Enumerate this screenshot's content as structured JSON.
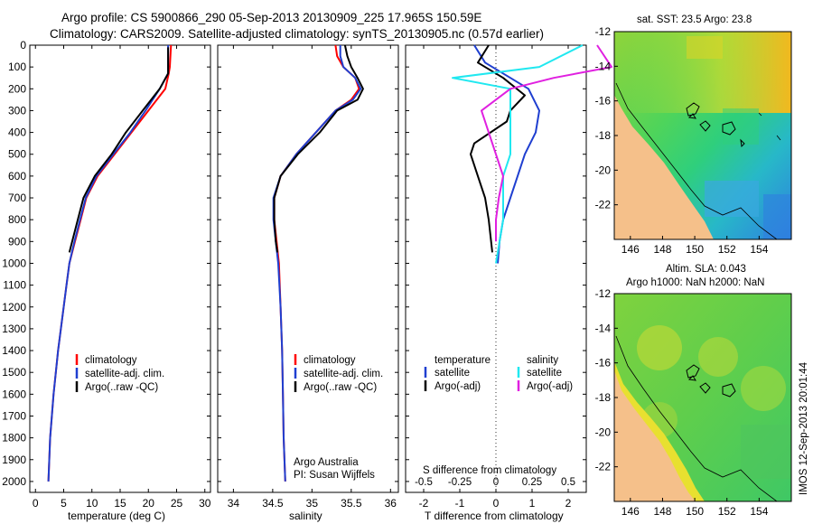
{
  "titles": {
    "line1": "Argo profile: CS 5900866_290 05-Sep-2013 20130909_225 17.965S 150.59E",
    "line2": "Climatology: CARS2009. Satellite-adjusted climatology: synTS_20130905.nc (0.57d earlier)"
  },
  "colors": {
    "climatology": "#ff0000",
    "satellite": "#1f3fd0",
    "argo": "#000000",
    "cyan": "#20e8f0",
    "magenta": "#e020e0",
    "land": "#f5c08a"
  },
  "chart_data": [
    {
      "id": "temperature",
      "type": "line",
      "xlabel": "temperature (deg C)",
      "ylabel": "",
      "xlim": [
        -1,
        31
      ],
      "ylim": [
        0,
        2050
      ],
      "xticks": [
        0,
        5,
        10,
        15,
        20,
        25,
        30
      ],
      "xtick_labels": [
        "0",
        "5",
        "10",
        "15",
        "20",
        "25",
        "30"
      ],
      "yticks": [
        0,
        100,
        200,
        300,
        400,
        500,
        600,
        700,
        800,
        900,
        1000,
        1100,
        1200,
        1300,
        1400,
        1500,
        1600,
        1700,
        1800,
        1900,
        2000
      ],
      "ytick_labels": [
        "0",
        "100",
        "200",
        "300",
        "400",
        "500",
        "600",
        "700",
        "800",
        "900",
        "1000",
        "1100",
        "1200",
        "1300",
        "1400",
        "1500",
        "1600",
        "1700",
        "1800",
        "1900",
        "2000"
      ],
      "legend": [
        "climatology",
        "satellite-adj. clim.",
        "Argo(..raw -QC)"
      ],
      "series": [
        {
          "name": "climatology",
          "color": "#ff0000",
          "x": [
            24.0,
            23.8,
            23.6,
            23.0,
            20.0,
            17.0,
            14.0,
            11.0,
            9.0,
            8.0,
            7.0,
            6.0,
            5.5,
            5.0,
            4.5,
            4.0,
            3.6,
            3.2,
            2.9,
            2.6,
            2.3
          ],
          "y": [
            0,
            100,
            130,
            200,
            300,
            400,
            500,
            600,
            700,
            800,
            900,
            1000,
            1100,
            1200,
            1300,
            1400,
            1500,
            1600,
            1700,
            1800,
            2000
          ]
        },
        {
          "name": "satellite-adj. clim.",
          "color": "#1f3fd0",
          "x": [
            23.5,
            23.5,
            23.5,
            22.0,
            19.5,
            16.8,
            13.8,
            10.8,
            8.9,
            7.9,
            6.9,
            6.0,
            5.5,
            5.0,
            4.5,
            4.0,
            3.6,
            3.2,
            2.9,
            2.6,
            2.3
          ],
          "y": [
            0,
            100,
            130,
            200,
            300,
            400,
            500,
            600,
            700,
            800,
            900,
            1000,
            1100,
            1200,
            1300,
            1400,
            1500,
            1600,
            1700,
            1800,
            2000
          ]
        },
        {
          "name": "Argo",
          "color": "#000000",
          "x": [
            23.5,
            23.5,
            23.5,
            22.0,
            19.0,
            16.0,
            13.5,
            10.5,
            8.5,
            7.5,
            6.5,
            6.0
          ],
          "y": [
            10,
            60,
            130,
            200,
            300,
            400,
            500,
            600,
            700,
            800,
            900,
            950
          ]
        }
      ]
    },
    {
      "id": "salinity",
      "type": "line",
      "xlabel": "salinity",
      "ylabel": "",
      "xlim": [
        33.8,
        36.1
      ],
      "ylim": [
        0,
        2050
      ],
      "xticks": [
        34,
        34.5,
        35,
        35.5,
        36
      ],
      "xtick_labels": [
        "34",
        "34.5",
        "35",
        "35.5",
        "36"
      ],
      "legend": [
        "climatology",
        "satellite-adj. clim.",
        "Argo(..raw -QC)"
      ],
      "annotation": [
        "Argo Australia",
        "PI: Susan Wijffels"
      ],
      "series": [
        {
          "name": "climatology",
          "color": "#ff0000",
          "x": [
            35.3,
            35.32,
            35.4,
            35.55,
            35.6,
            35.5,
            35.3,
            35.05,
            34.8,
            34.6,
            34.52,
            34.52,
            34.55,
            34.58,
            34.6,
            34.62,
            34.63,
            34.64,
            34.65,
            34.66
          ],
          "y": [
            0,
            50,
            100,
            150,
            200,
            250,
            300,
            400,
            500,
            600,
            700,
            800,
            900,
            1000,
            1200,
            1400,
            1600,
            1800,
            1900,
            2000
          ]
        },
        {
          "name": "satellite-adj. clim.",
          "color": "#1f3fd0",
          "x": [
            35.36,
            35.36,
            35.4,
            35.55,
            35.62,
            35.52,
            35.3,
            35.05,
            34.8,
            34.6,
            34.51,
            34.51,
            34.54,
            34.57,
            34.6,
            34.62,
            34.63,
            34.64,
            34.65,
            34.66
          ],
          "y": [
            0,
            50,
            100,
            150,
            200,
            250,
            300,
            400,
            500,
            600,
            700,
            800,
            900,
            1000,
            1200,
            1400,
            1600,
            1800,
            1900,
            2000
          ]
        },
        {
          "name": "Argo",
          "color": "#000000",
          "x": [
            35.42,
            35.45,
            35.5,
            35.58,
            35.65,
            35.58,
            35.32,
            35.1,
            34.82,
            34.6,
            34.52,
            34.52,
            34.54,
            34.56
          ],
          "y": [
            0,
            50,
            100,
            150,
            200,
            250,
            300,
            400,
            500,
            600,
            700,
            800,
            900,
            950
          ]
        }
      ]
    },
    {
      "id": "differences",
      "type": "line",
      "xlabel": "T difference from climatology",
      "xlabel2": "S difference from climatology",
      "xlim": [
        -2.5,
        2.5
      ],
      "ylim": [
        0,
        2050
      ],
      "xticks": [
        -2,
        -1,
        0,
        1,
        2
      ],
      "xtick_labels": [
        "-2",
        "-1",
        "0",
        "1",
        "2"
      ],
      "xticks2": [
        -0.5,
        -0.25,
        0,
        0.25,
        0.5
      ],
      "xtick2_labels": [
        "-0.5",
        "-0.25",
        "0",
        "0.25",
        "0.5"
      ],
      "legend_headers": [
        "temperature",
        "salinity"
      ],
      "legend": [
        "satellite",
        "Argo(-adj)",
        "satellite",
        "Argo(-adj)"
      ],
      "series": [
        {
          "name": "T satellite",
          "color": "#1f3fd0",
          "x": [
            -0.6,
            -0.3,
            0.4,
            0.9,
            1.2,
            1.1,
            0.8,
            0.6,
            0.4,
            0.2,
            0.1,
            0.05
          ],
          "y": [
            0,
            80,
            150,
            200,
            300,
            400,
            500,
            600,
            700,
            800,
            900,
            1000
          ]
        },
        {
          "name": "T Argo(-adj)",
          "color": "#000000",
          "x": [
            -0.2,
            -0.5,
            0.2,
            0.8,
            0.4,
            0.3,
            -0.6,
            -0.7,
            -0.5,
            -0.3,
            -0.2,
            -0.1
          ],
          "y": [
            0,
            80,
            150,
            230,
            300,
            350,
            450,
            500,
            600,
            700,
            800,
            950
          ]
        },
        {
          "name": "S satellite",
          "color": "#20e8f0",
          "x": [
            0.6,
            0.3,
            -0.3,
            0.1,
            0.1,
            0.1,
            0.1,
            0.05,
            0.05,
            0.0
          ],
          "y": [
            0,
            100,
            150,
            200,
            300,
            400,
            500,
            600,
            800,
            1000
          ]
        },
        {
          "name": "S Argo(-adj)",
          "color": "#e020e0",
          "x": [
            0.7,
            0.8,
            0.4,
            0.1,
            -0.1,
            -0.05,
            0.05,
            0.02,
            0.0,
            0.0
          ],
          "y": [
            0,
            100,
            150,
            200,
            300,
            400,
            600,
            700,
            800,
            900
          ]
        }
      ]
    }
  ],
  "maps": {
    "sst": {
      "title": "sat. SST: 23.5 Argo: 23.8"
    },
    "sla": {
      "title1": "Altim. SLA: 0.043",
      "title2": "Argo h1000: NaN h2000: NaN"
    },
    "xticks": [
      146,
      148,
      150,
      152,
      154
    ],
    "xtick_labels": [
      "146",
      "148",
      "150",
      "152",
      "154"
    ],
    "yticks": [
      -12,
      -14,
      -16,
      -18,
      -20,
      -22
    ],
    "ytick_labels": [
      "-12",
      "-14",
      "-16",
      "-18",
      "-20",
      "-22"
    ]
  },
  "watermark": "IMOS 12-Sep-2013 20:01:44"
}
